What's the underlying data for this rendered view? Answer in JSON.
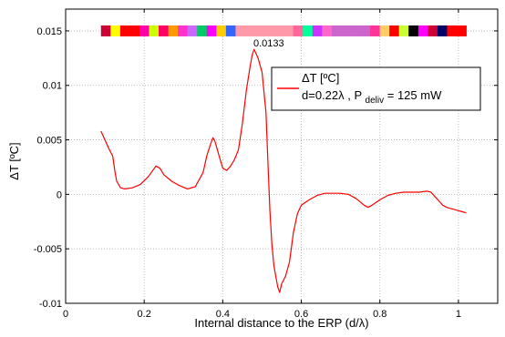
{
  "chart_data": {
    "type": "line",
    "xlabel": "Internal distance to the ERP (d/λ)",
    "ylabel": "ΔT [ºC]",
    "xlim": [
      0,
      1.1
    ],
    "ylim": [
      -0.01,
      0.017
    ],
    "x_ticks": [
      0,
      0.2,
      0.4,
      0.6,
      0.8,
      1
    ],
    "x_tick_labels": [
      "0",
      "0.2",
      "0.4",
      "0.6",
      "0.8",
      "1"
    ],
    "y_ticks": [
      -0.01,
      -0.005,
      0,
      0.005,
      0.01,
      0.015
    ],
    "y_tick_labels": [
      "-0.01",
      "-0.005",
      "0",
      "0.005",
      "0.01",
      "0.015"
    ],
    "grid": true,
    "grid_style": "dotted",
    "legend_position": "top-right",
    "legend": {
      "title": "ΔT [ºC]",
      "line_prefix": "d=0.22λ , P",
      "subscript": "deliv",
      "line_suffix": " = 125 mW"
    },
    "annotation": {
      "text": "0.0133",
      "x": 0.48,
      "y": 0.0133
    },
    "colors": {
      "line": "#ff0000",
      "grid": "#b0b0b0",
      "axis": "#000000"
    },
    "color_band": {
      "y": 0.015,
      "x_start": 0.09,
      "x_end": 1.02,
      "colors": [
        "#cc0033",
        "#ffff00",
        "#ff0000",
        "#ff00aa",
        "#ccff00",
        "#ff0066",
        "#ff9900",
        "#ff33cc",
        "#cc66ff",
        "#00cc66",
        "#ff00ff",
        "#ffcc00",
        "#3366ff",
        "#ff99aa",
        "#ff99aa",
        "#ff99aa",
        "#ff6699",
        "#00ff99",
        "#cc33ff",
        "#ff66cc",
        "#cc66cc",
        "#cc66cc",
        "#ff3399",
        "#ffcc66",
        "#ff0000",
        "#ccff33",
        "#000000",
        "#ff00ff",
        "#cc0033",
        "#000066",
        "#ff0000",
        "#ff0000"
      ],
      "widths": [
        1,
        1,
        2,
        1,
        1,
        1,
        1,
        1,
        1,
        1,
        1,
        1,
        1,
        2,
        2,
        2,
        1,
        1,
        1,
        1,
        2,
        2,
        1,
        1,
        1,
        1,
        1,
        1,
        1,
        1,
        1,
        1
      ]
    },
    "series": [
      {
        "name": "d=0.22λ , P deliv = 125 mW",
        "color": "#ff0000",
        "points": [
          [
            0.09,
            0.0058
          ],
          [
            0.1,
            0.005
          ],
          [
            0.11,
            0.0042
          ],
          [
            0.12,
            0.0035
          ],
          [
            0.125,
            0.0022
          ],
          [
            0.13,
            0.0012
          ],
          [
            0.14,
            0.0006
          ],
          [
            0.15,
            0.0005
          ],
          [
            0.17,
            0.0006
          ],
          [
            0.19,
            0.0009
          ],
          [
            0.21,
            0.0016
          ],
          [
            0.22,
            0.0021
          ],
          [
            0.23,
            0.0026
          ],
          [
            0.24,
            0.0024
          ],
          [
            0.25,
            0.0018
          ],
          [
            0.27,
            0.0012
          ],
          [
            0.29,
            0.0008
          ],
          [
            0.31,
            0.0005
          ],
          [
            0.33,
            0.0007
          ],
          [
            0.35,
            0.002
          ],
          [
            0.36,
            0.0036
          ],
          [
            0.37,
            0.0047
          ],
          [
            0.375,
            0.0052
          ],
          [
            0.38,
            0.0049
          ],
          [
            0.39,
            0.0036
          ],
          [
            0.4,
            0.0024
          ],
          [
            0.41,
            0.0022
          ],
          [
            0.42,
            0.0026
          ],
          [
            0.43,
            0.0032
          ],
          [
            0.44,
            0.0041
          ],
          [
            0.45,
            0.0065
          ],
          [
            0.46,
            0.0095
          ],
          [
            0.47,
            0.0118
          ],
          [
            0.475,
            0.0128
          ],
          [
            0.48,
            0.0133
          ],
          [
            0.49,
            0.0125
          ],
          [
            0.5,
            0.0112
          ],
          [
            0.51,
            0.0075
          ],
          [
            0.515,
            0.003
          ],
          [
            0.52,
            -0.0015
          ],
          [
            0.525,
            -0.0045
          ],
          [
            0.53,
            -0.0065
          ],
          [
            0.535,
            -0.0075
          ],
          [
            0.54,
            -0.0085
          ],
          [
            0.545,
            -0.009
          ],
          [
            0.55,
            -0.0082
          ],
          [
            0.56,
            -0.0075
          ],
          [
            0.57,
            -0.0062
          ],
          [
            0.58,
            -0.0035
          ],
          [
            0.59,
            -0.0018
          ],
          [
            0.6,
            -0.001
          ],
          [
            0.62,
            -0.0005
          ],
          [
            0.64,
            -0.0001
          ],
          [
            0.66,
            0.0001
          ],
          [
            0.68,
            0.0001
          ],
          [
            0.7,
            0.0001
          ],
          [
            0.72,
            0.0
          ],
          [
            0.74,
            -0.0004
          ],
          [
            0.76,
            -0.001
          ],
          [
            0.77,
            -0.0012
          ],
          [
            0.78,
            -0.001
          ],
          [
            0.8,
            -0.0005
          ],
          [
            0.82,
            -0.0001
          ],
          [
            0.84,
            0.0001
          ],
          [
            0.86,
            0.0002
          ],
          [
            0.88,
            0.0002
          ],
          [
            0.9,
            0.0002
          ],
          [
            0.92,
            0.0003
          ],
          [
            0.93,
            0.0002
          ],
          [
            0.94,
            -0.0002
          ],
          [
            0.95,
            -0.0006
          ],
          [
            0.96,
            -0.001
          ],
          [
            0.97,
            -0.0012
          ],
          [
            0.98,
            -0.0013
          ],
          [
            0.99,
            -0.0014
          ],
          [
            1.0,
            -0.0015
          ],
          [
            1.01,
            -0.0016
          ],
          [
            1.02,
            -0.0017
          ]
        ]
      }
    ]
  }
}
